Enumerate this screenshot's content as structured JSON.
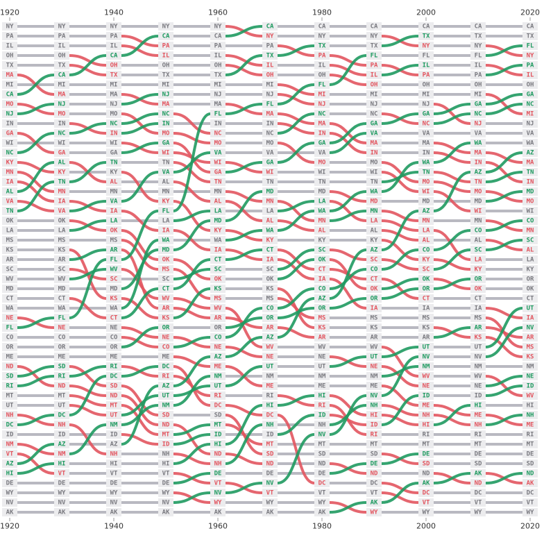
{
  "chart_data": {
    "type": "bump",
    "x": [
      1920,
      1930,
      1940,
      1950,
      1960,
      1970,
      1980,
      1990,
      2000,
      2010,
      2020
    ],
    "xlim": [
      1920,
      2020
    ],
    "xticks": [
      1920,
      1940,
      1960,
      1980,
      2000,
      2020
    ],
    "colors": {
      "up": "#1f9a60",
      "down": "#e2555f",
      "same": "#b9b9c1",
      "same_text": "#7a7a80",
      "label_bg": "#ececee"
    },
    "columns": [
      [
        "NY",
        "PA",
        "IL",
        "OH",
        "TX",
        "MA",
        "MI",
        "CA",
        "MO",
        "NJ",
        "IN",
        "GA",
        "WI",
        "NC",
        "KY",
        "MN",
        "IA",
        "AL",
        "VA",
        "TN",
        "OK",
        "LA",
        "MS",
        "KS",
        "AR",
        "SC",
        "WV",
        "MD",
        "CT",
        "WA",
        "NE",
        "FL",
        "CO",
        "OR",
        "ME",
        "ND",
        "SD",
        "RI",
        "MT",
        "UT",
        "NH",
        "DC",
        "ID",
        "NM",
        "VT",
        "AZ",
        "HI",
        "DE",
        "WY",
        "NV",
        "AK"
      ],
      [
        "NY",
        "PA",
        "IL",
        "OH",
        "TX",
        "CA",
        "MI",
        "MA",
        "NJ",
        "MO",
        "IN",
        "NC",
        "WI",
        "GA",
        "AL",
        "KY",
        "TN",
        "MN",
        "IA",
        "VA",
        "OK",
        "LA",
        "MS",
        "KS",
        "AR",
        "SC",
        "WV",
        "MD",
        "CT",
        "WA",
        "FL",
        "NE",
        "CO",
        "OR",
        "ME",
        "SD",
        "RI",
        "ND",
        "MT",
        "UT",
        "DC",
        "NH",
        "ID",
        "AZ",
        "NM",
        "HI",
        "VT",
        "DE",
        "WY",
        "NV",
        "AK"
      ],
      [
        "NY",
        "PA",
        "IL",
        "CA",
        "OH",
        "TX",
        "MI",
        "MA",
        "NJ",
        "MO",
        "NC",
        "IN",
        "WI",
        "GA",
        "TN",
        "KY",
        "AL",
        "MN",
        "VA",
        "IA",
        "LA",
        "OK",
        "MS",
        "AR",
        "FL",
        "WV",
        "SC",
        "MD",
        "KS",
        "WA",
        "CT",
        "NE",
        "CO",
        "OR",
        "ME",
        "RI",
        "DC",
        "SD",
        "ND",
        "MT",
        "UT",
        "NM",
        "ID",
        "AZ",
        "NH",
        "HI",
        "VT",
        "DE",
        "WY",
        "NV",
        "AK"
      ],
      [
        "NY",
        "CA",
        "PA",
        "IL",
        "OH",
        "TX",
        "MI",
        "NJ",
        "MA",
        "NC",
        "IN",
        "MO",
        "GA",
        "WI",
        "TN",
        "VA",
        "AL",
        "MN",
        "KY",
        "FL",
        "LA",
        "IA",
        "WA",
        "MD",
        "OK",
        "MS",
        "SC",
        "CT",
        "WV",
        "AR",
        "KS",
        "OR",
        "NE",
        "CO",
        "ME",
        "DC",
        "RI",
        "AZ",
        "UT",
        "NM",
        "SD",
        "ND",
        "MT",
        "ID",
        "NH",
        "HI",
        "VT",
        "DE",
        "WY",
        "NV",
        "AK"
      ],
      [
        "NY",
        "CA",
        "PA",
        "IL",
        "OH",
        "TX",
        "MI",
        "NJ",
        "MA",
        "FL",
        "IN",
        "NC",
        "MO",
        "VA",
        "WI",
        "GA",
        "TN",
        "MN",
        "AL",
        "LA",
        "MD",
        "KY",
        "WA",
        "IA",
        "CT",
        "SC",
        "OK",
        "KS",
        "MS",
        "WV",
        "AR",
        "OR",
        "CO",
        "NE",
        "AZ",
        "ME",
        "NM",
        "UT",
        "RI",
        "DC",
        "SD",
        "MT",
        "ID",
        "HI",
        "ND",
        "NH",
        "DE",
        "VT",
        "NV",
        "WY",
        "AK"
      ],
      [
        "CA",
        "NY",
        "PA",
        "TX",
        "IL",
        "OH",
        "MI",
        "NJ",
        "FL",
        "MA",
        "IN",
        "NC",
        "MO",
        "VA",
        "GA",
        "WI",
        "TN",
        "MD",
        "MN",
        "LA",
        "AL",
        "WA",
        "KY",
        "CT",
        "IA",
        "SC",
        "OK",
        "KS",
        "MS",
        "CO",
        "OR",
        "AR",
        "AZ",
        "WV",
        "NE",
        "UT",
        "NM",
        "ME",
        "RI",
        "HI",
        "DC",
        "NH",
        "ID",
        "MT",
        "SD",
        "ND",
        "DE",
        "NV",
        "VT",
        "WY",
        "AK"
      ],
      [
        "CA",
        "NY",
        "TX",
        "PA",
        "IL",
        "OH",
        "FL",
        "MI",
        "NJ",
        "NC",
        "MA",
        "IN",
        "GA",
        "VA",
        "MO",
        "WI",
        "TN",
        "MD",
        "LA",
        "WA",
        "MN",
        "AL",
        "KY",
        "SC",
        "OK",
        "CT",
        "IA",
        "CO",
        "AZ",
        "OR",
        "MS",
        "KS",
        "AR",
        "WV",
        "NE",
        "UT",
        "NM",
        "ME",
        "HI",
        "RI",
        "ID",
        "NH",
        "NV",
        "MT",
        "SD",
        "ND",
        "DE",
        "DC",
        "VT",
        "WY",
        "AK"
      ],
      [
        "CA",
        "NY",
        "TX",
        "FL",
        "PA",
        "IL",
        "OH",
        "MI",
        "NJ",
        "NC",
        "GA",
        "VA",
        "MA",
        "IN",
        "MO",
        "WI",
        "TN",
        "WA",
        "MD",
        "MN",
        "LA",
        "AL",
        "KY",
        "AZ",
        "SC",
        "CO",
        "CT",
        "OK",
        "OR",
        "IA",
        "MS",
        "KS",
        "AR",
        "WV",
        "UT",
        "NE",
        "NM",
        "ME",
        "NV",
        "NH",
        "HI",
        "ID",
        "RI",
        "MT",
        "SD",
        "DE",
        "ND",
        "DC",
        "VT",
        "AK",
        "WY"
      ],
      [
        "CA",
        "TX",
        "NY",
        "FL",
        "IL",
        "PA",
        "OH",
        "MI",
        "NJ",
        "GA",
        "NC",
        "VA",
        "MA",
        "IN",
        "WA",
        "TN",
        "MO",
        "WI",
        "MD",
        "AZ",
        "MN",
        "LA",
        "AL",
        "CO",
        "KY",
        "SC",
        "OK",
        "OR",
        "CT",
        "IA",
        "MS",
        "KS",
        "AR",
        "UT",
        "NV",
        "NM",
        "WV",
        "NE",
        "ID",
        "ME",
        "NH",
        "HI",
        "RI",
        "MT",
        "DE",
        "SD",
        "ND",
        "AK",
        "DC",
        "VT",
        "WY"
      ],
      [
        "CA",
        "TX",
        "NY",
        "FL",
        "IL",
        "PA",
        "OH",
        "MI",
        "GA",
        "NC",
        "NJ",
        "VA",
        "WA",
        "MA",
        "IN",
        "AZ",
        "TN",
        "MO",
        "MD",
        "WI",
        "MN",
        "CO",
        "AL",
        "SC",
        "LA",
        "KY",
        "OR",
        "OK",
        "CT",
        "IA",
        "MS",
        "AR",
        "KS",
        "UT",
        "NV",
        "NM",
        "WV",
        "NE",
        "ID",
        "HI",
        "ME",
        "NH",
        "RI",
        "MT",
        "DE",
        "SD",
        "AK",
        "ND",
        "DC",
        "VT",
        "WY"
      ],
      [
        "CA",
        "TX",
        "FL",
        "NY",
        "PA",
        "IL",
        "OH",
        "GA",
        "NC",
        "MI",
        "NJ",
        "VA",
        "WA",
        "AZ",
        "MA",
        "TN",
        "IN",
        "MD",
        "MO",
        "WI",
        "CO",
        "MN",
        "SC",
        "AL",
        "LA",
        "KY",
        "OR",
        "OK",
        "CT",
        "UT",
        "IA",
        "NV",
        "AR",
        "MS",
        "KS",
        "NM",
        "NE",
        "ID",
        "WV",
        "HI",
        "NH",
        "ME",
        "RI",
        "MT",
        "DE",
        "SD",
        "ND",
        "AK",
        "DC",
        "VT",
        "WY"
      ]
    ]
  }
}
